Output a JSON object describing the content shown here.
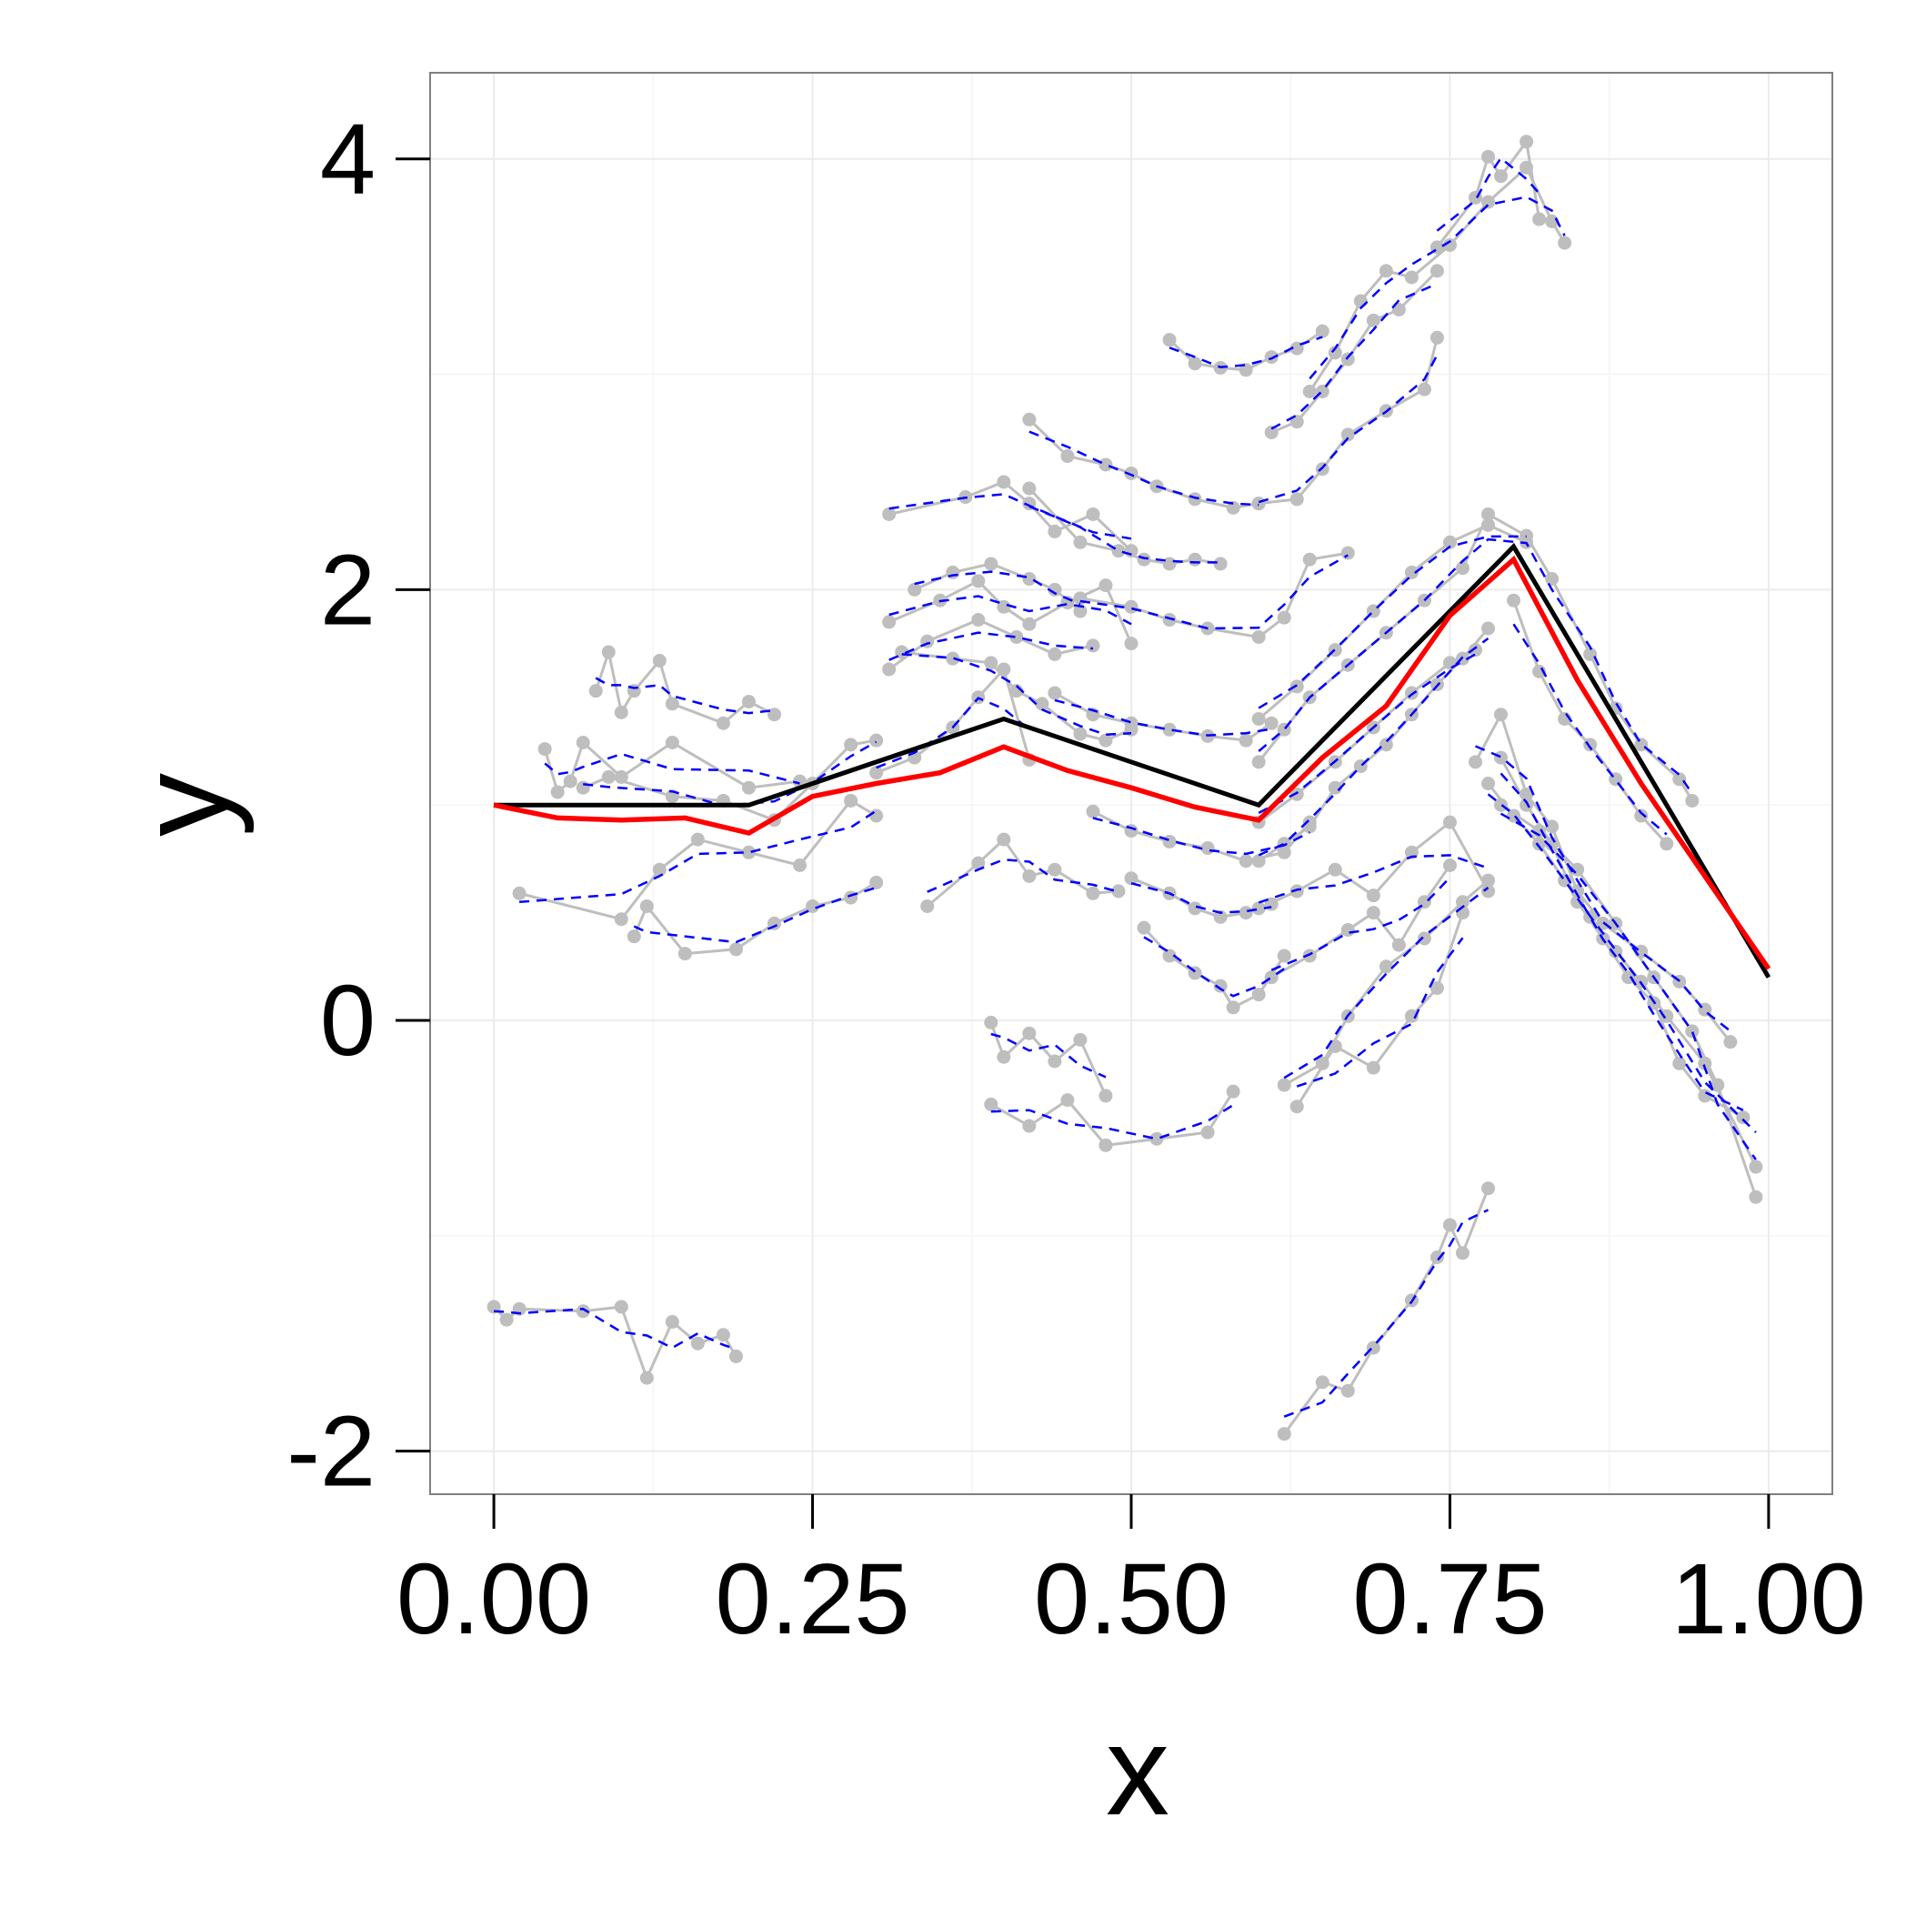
{
  "chart_data": {
    "type": "line",
    "title": "",
    "xlabel": "x",
    "ylabel": "y",
    "xlim": [
      -0.05,
      1.05
    ],
    "ylim": [
      -2.2,
      4.4
    ],
    "xticks": [
      0.0,
      0.25,
      0.5,
      0.75,
      1.0
    ],
    "xtick_labels": [
      "0.00",
      "0.25",
      "0.50",
      "0.75",
      "1.00"
    ],
    "yticks": [
      -2,
      0,
      2,
      4
    ],
    "ytick_labels": [
      "-2",
      "0",
      "2",
      "4"
    ],
    "grid": true,
    "legend": "none",
    "colors": {
      "points": "#bebebe",
      "fit": "#0000ff",
      "truth": "#000000",
      "mean": "#ff0000",
      "grid": "#ebebeb",
      "border": "#7f7f7f"
    },
    "true_curve": {
      "x": [
        0.0,
        0.2,
        0.4,
        0.6,
        0.8,
        1.0
      ],
      "y": [
        1.0,
        1.0,
        1.4,
        1.0,
        2.2,
        0.2
      ]
    },
    "estimated_curve": {
      "x": [
        0.0,
        0.05,
        0.1,
        0.15,
        0.2,
        0.25,
        0.3,
        0.35,
        0.4,
        0.45,
        0.5,
        0.55,
        0.6,
        0.65,
        0.7,
        0.75,
        0.8,
        0.85,
        0.9,
        0.95,
        1.0
      ],
      "y": [
        1.0,
        0.94,
        0.93,
        0.94,
        0.87,
        1.04,
        1.1,
        1.15,
        1.27,
        1.16,
        1.08,
        0.99,
        0.93,
        1.22,
        1.46,
        1.88,
        2.14,
        1.58,
        1.1,
        0.67,
        0.24
      ]
    },
    "subjects": [
      {
        "x": [
          0.08,
          0.09,
          0.1,
          0.11,
          0.13,
          0.14,
          0.18,
          0.2,
          0.22
        ],
        "y": [
          1.53,
          1.71,
          1.43,
          1.53,
          1.67,
          1.47,
          1.38,
          1.48,
          1.42
        ]
      },
      {
        "x": [
          0.04,
          0.05,
          0.06,
          0.07,
          0.1,
          0.14,
          0.2,
          0.24
        ],
        "y": [
          1.26,
          1.06,
          1.11,
          1.29,
          1.13,
          1.29,
          1.08,
          1.11
        ]
      },
      {
        "x": [
          0.07,
          0.09,
          0.14,
          0.18,
          0.22,
          0.25,
          0.28,
          0.3
        ],
        "y": [
          1.08,
          1.13,
          1.04,
          1.02,
          0.93,
          1.1,
          1.28,
          1.3
        ]
      },
      {
        "x": [
          0.02,
          0.1,
          0.13,
          0.16,
          0.2,
          0.24,
          0.28,
          0.3
        ],
        "y": [
          0.59,
          0.47,
          0.7,
          0.84,
          0.78,
          0.72,
          1.02,
          0.95
        ]
      },
      {
        "x": [
          0.11,
          0.12,
          0.15,
          0.19,
          0.22,
          0.25,
          0.28,
          0.3
        ],
        "y": [
          0.39,
          0.53,
          0.31,
          0.33,
          0.45,
          0.53,
          0.57,
          0.64
        ]
      },
      {
        "x": [
          0.0,
          0.01,
          0.02,
          0.07,
          0.1,
          0.12,
          0.14,
          0.16,
          0.18,
          0.19
        ],
        "y": [
          -1.33,
          -1.39,
          -1.34,
          -1.35,
          -1.33,
          -1.66,
          -1.4,
          -1.5,
          -1.46,
          -1.56
        ]
      },
      {
        "x": [
          0.31,
          0.37,
          0.4,
          0.42,
          0.44,
          0.47,
          0.5
        ],
        "y": [
          2.35,
          2.43,
          2.5,
          2.4,
          2.27,
          2.35,
          2.18
        ]
      },
      {
        "x": [
          0.33,
          0.36,
          0.39,
          0.42,
          0.44,
          0.46
        ],
        "y": [
          2.0,
          2.08,
          2.12,
          2.05,
          2.0,
          1.9
        ]
      },
      {
        "x": [
          0.31,
          0.35,
          0.38,
          0.4,
          0.42,
          0.45,
          0.48,
          0.5
        ],
        "y": [
          1.85,
          1.95,
          2.04,
          1.92,
          1.84,
          1.94,
          2.02,
          1.75
        ]
      },
      {
        "x": [
          0.31,
          0.34,
          0.38,
          0.41,
          0.44,
          0.47
        ],
        "y": [
          1.63,
          1.76,
          1.86,
          1.78,
          1.7,
          1.74
        ]
      },
      {
        "x": [
          0.32,
          0.36,
          0.39,
          0.41,
          0.43,
          0.46,
          0.48,
          0.5
        ],
        "y": [
          1.71,
          1.68,
          1.66,
          1.53,
          1.47,
          1.33,
          1.3,
          1.35
        ]
      },
      {
        "x": [
          0.3,
          0.33,
          0.36,
          0.38,
          0.4,
          0.42
        ],
        "y": [
          1.15,
          1.22,
          1.36,
          1.5,
          1.63,
          1.21
        ]
      },
      {
        "x": [
          0.34,
          0.38,
          0.4,
          0.42,
          0.44,
          0.47,
          0.49
        ],
        "y": [
          0.53,
          0.73,
          0.84,
          0.67,
          0.7,
          0.59,
          0.6
        ]
      },
      {
        "x": [
          0.42,
          0.45,
          0.48,
          0.5,
          0.52,
          0.55,
          0.58,
          0.6
        ],
        "y": [
          2.79,
          2.62,
          2.58,
          2.54,
          2.48,
          2.42,
          2.38,
          2.4
        ]
      },
      {
        "x": [
          0.42,
          0.46,
          0.49,
          0.51,
          0.53,
          0.55,
          0.57
        ],
        "y": [
          2.47,
          2.22,
          2.18,
          2.14,
          2.12,
          2.14,
          2.12
        ]
      },
      {
        "x": [
          0.46,
          0.5,
          0.53,
          0.56,
          0.6,
          0.62,
          0.64,
          0.67
        ],
        "y": [
          1.96,
          1.92,
          1.86,
          1.82,
          1.78,
          1.87,
          2.14,
          2.17
        ]
      },
      {
        "x": [
          0.44,
          0.47,
          0.5,
          0.53,
          0.56,
          0.59,
          0.61
        ],
        "y": [
          1.52,
          1.42,
          1.38,
          1.35,
          1.32,
          1.3,
          1.38
        ]
      },
      {
        "x": [
          0.47,
          0.5,
          0.53,
          0.56,
          0.59,
          0.62,
          0.64
        ],
        "y": [
          0.97,
          0.88,
          0.83,
          0.8,
          0.74,
          0.78,
          0.92
        ]
      },
      {
        "x": [
          0.5,
          0.53,
          0.55,
          0.57,
          0.59,
          0.61
        ],
        "y": [
          0.66,
          0.59,
          0.52,
          0.48,
          0.5,
          0.54
        ]
      },
      {
        "x": [
          0.51,
          0.53,
          0.55,
          0.57,
          0.58,
          0.6,
          0.62
        ],
        "y": [
          0.43,
          0.3,
          0.22,
          0.16,
          0.06,
          0.12,
          0.3
        ]
      },
      {
        "x": [
          0.39,
          0.4,
          0.42,
          0.44,
          0.46,
          0.48
        ],
        "y": [
          -0.01,
          -0.17,
          -0.06,
          -0.19,
          -0.09,
          -0.35
        ]
      },
      {
        "x": [
          0.39,
          0.42,
          0.45,
          0.48,
          0.52,
          0.56,
          0.58
        ],
        "y": [
          -0.39,
          -0.49,
          -0.37,
          -0.58,
          -0.55,
          -0.52,
          -0.33
        ]
      },
      {
        "x": [
          0.53,
          0.55,
          0.57,
          0.59,
          0.61,
          0.63,
          0.65
        ],
        "y": [
          3.16,
          3.05,
          3.03,
          3.02,
          3.08,
          3.12,
          3.2
        ]
      },
      {
        "x": [
          0.61,
          0.63,
          0.65,
          0.67,
          0.69,
          0.71,
          0.74
        ],
        "y": [
          2.73,
          2.78,
          2.92,
          3.07,
          3.25,
          3.3,
          3.48
        ]
      },
      {
        "x": [
          0.6,
          0.63,
          0.65,
          0.67,
          0.7,
          0.73,
          0.74
        ],
        "y": [
          2.4,
          2.42,
          2.56,
          2.72,
          2.83,
          2.93,
          3.17
        ]
      },
      {
        "x": [
          0.64,
          0.66,
          0.68,
          0.7,
          0.72,
          0.75,
          0.78,
          0.81,
          0.83,
          0.84
        ],
        "y": [
          2.92,
          3.1,
          3.34,
          3.48,
          3.45,
          3.6,
          3.8,
          3.96,
          3.71,
          3.61
        ]
      },
      {
        "x": [
          0.74,
          0.77,
          0.78,
          0.79,
          0.81,
          0.82
        ],
        "y": [
          3.59,
          3.82,
          4.01,
          3.92,
          4.08,
          3.72
        ]
      },
      {
        "x": [
          0.6,
          0.63,
          0.66,
          0.69,
          0.72,
          0.75,
          0.78,
          0.81
        ],
        "y": [
          1.4,
          1.55,
          1.72,
          1.9,
          2.08,
          2.22,
          2.3,
          2.22
        ]
      },
      {
        "x": [
          0.6,
          0.62,
          0.64,
          0.67,
          0.7,
          0.73,
          0.76,
          0.78,
          0.81,
          0.83,
          0.86,
          0.88,
          0.9,
          0.93,
          0.94
        ],
        "y": [
          1.2,
          1.35,
          1.5,
          1.65,
          1.8,
          1.95,
          2.1,
          2.35,
          2.25,
          2.05,
          1.7,
          1.45,
          1.28,
          1.12,
          1.02
        ]
      },
      {
        "x": [
          0.6,
          0.63,
          0.66,
          0.69,
          0.72,
          0.75,
          0.77
        ],
        "y": [
          0.92,
          1.05,
          1.2,
          1.36,
          1.52,
          1.66,
          1.72
        ]
      },
      {
        "x": [
          0.6,
          0.62,
          0.64,
          0.66,
          0.68,
          0.7,
          0.72,
          0.74,
          0.76,
          0.78
        ],
        "y": [
          0.74,
          0.82,
          0.9,
          1.08,
          1.18,
          1.28,
          1.42,
          1.56,
          1.68,
          1.82
        ]
      },
      {
        "x": [
          0.6,
          0.63,
          0.66,
          0.69,
          0.72,
          0.75,
          0.78
        ],
        "y": [
          0.52,
          0.6,
          0.7,
          0.58,
          0.78,
          0.92,
          0.6
        ]
      },
      {
        "x": [
          0.61,
          0.64,
          0.67,
          0.69,
          0.71,
          0.73,
          0.75
        ],
        "y": [
          0.2,
          0.3,
          0.42,
          0.5,
          0.35,
          0.55,
          0.72
        ]
      },
      {
        "x": [
          0.62,
          0.65,
          0.67,
          0.7,
          0.73,
          0.76,
          0.78
        ],
        "y": [
          -0.3,
          -0.2,
          0.02,
          0.25,
          0.38,
          0.55,
          0.65
        ]
      },
      {
        "x": [
          0.63,
          0.66,
          0.69,
          0.72,
          0.74,
          0.76
        ],
        "y": [
          -0.4,
          -0.12,
          -0.22,
          0.02,
          0.15,
          0.5
        ]
      },
      {
        "x": [
          0.62,
          0.65,
          0.67,
          0.69,
          0.72,
          0.74,
          0.75,
          0.76,
          0.78
        ],
        "y": [
          -1.92,
          -1.68,
          -1.72,
          -1.52,
          -1.3,
          -1.1,
          -0.95,
          -1.08,
          -0.78
        ]
      },
      {
        "x": [
          0.77,
          0.79,
          0.81,
          0.83,
          0.85,
          0.87,
          0.9,
          0.93,
          0.95,
          0.97
        ],
        "y": [
          1.2,
          1.42,
          1.05,
          0.9,
          0.6,
          0.45,
          0.32,
          0.18,
          0.05,
          -0.1
        ]
      },
      {
        "x": [
          0.79,
          0.81,
          0.83,
          0.85,
          0.87,
          0.89,
          0.91,
          0.93,
          0.95,
          0.98
        ],
        "y": [
          1.22,
          1.0,
          0.82,
          0.55,
          0.38,
          0.2,
          0.08,
          -0.2,
          -0.35,
          -0.45
        ]
      },
      {
        "x": [
          0.78,
          0.8,
          0.82,
          0.84,
          0.86,
          0.88,
          0.9,
          0.92,
          0.95,
          0.99
        ],
        "y": [
          1.1,
          0.95,
          0.82,
          0.65,
          0.48,
          0.32,
          0.18,
          0.02,
          -0.2,
          -0.68
        ]
      },
      {
        "x": [
          0.79,
          0.82,
          0.85,
          0.88,
          0.91,
          0.94,
          0.96,
          0.99
        ],
        "y": [
          1.0,
          0.88,
          0.7,
          0.45,
          0.2,
          -0.05,
          -0.3,
          -0.82
        ]
      },
      {
        "x": [
          0.8,
          0.82,
          0.84,
          0.86,
          0.88,
          0.9,
          0.92
        ],
        "y": [
          1.95,
          1.62,
          1.4,
          1.28,
          1.12,
          0.95,
          0.82
        ]
      }
    ]
  }
}
